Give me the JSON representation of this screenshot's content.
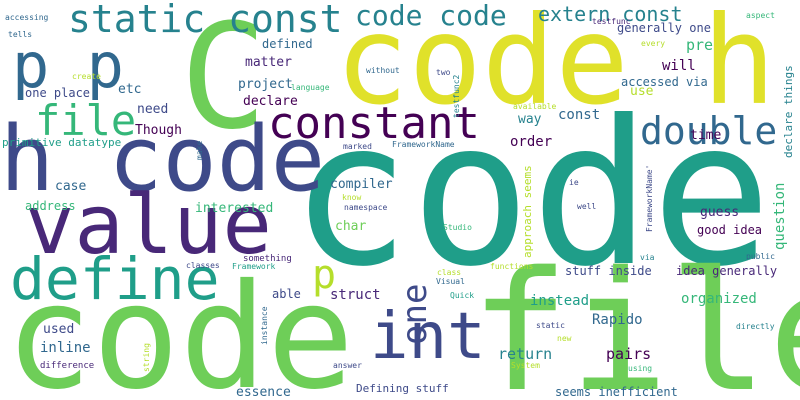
{
  "words": [
    {
      "text": "code",
      "color": "teal"
    },
    {
      "text": "file",
      "color": "green"
    },
    {
      "text": "code",
      "color": "green"
    },
    {
      "text": "code h",
      "color": "yellow"
    },
    {
      "text": "C",
      "color": "green"
    },
    {
      "text": "h code",
      "color": "navy"
    },
    {
      "text": "value",
      "color": "purple"
    },
    {
      "text": "define",
      "color": "teal"
    },
    {
      "text": "int",
      "color": "navy"
    },
    {
      "text": "constant",
      "color": "dpurple"
    },
    {
      "text": "p p",
      "color": "blue"
    },
    {
      "text": "static const",
      "color": "cyan"
    },
    {
      "text": "code code",
      "color": "cyan"
    },
    {
      "text": "double",
      "color": "blue"
    },
    {
      "text": "file",
      "color": "mint"
    },
    {
      "text": "extern const",
      "color": "cyan"
    },
    {
      "text": "one",
      "color": "navy"
    },
    {
      "text": "p",
      "color": "lime"
    },
    {
      "text": "Rapido",
      "color": "blue"
    },
    {
      "text": "return",
      "color": "cyan"
    },
    {
      "text": "pairs",
      "color": "dpurple"
    },
    {
      "text": "instead",
      "color": "teal"
    },
    {
      "text": "organized",
      "color": "mint"
    },
    {
      "text": "defined",
      "color": "blue"
    },
    {
      "text": "matter",
      "color": "purple"
    },
    {
      "text": "project",
      "color": "blue"
    },
    {
      "text": "declare",
      "color": "dpurple"
    },
    {
      "text": "Though",
      "color": "dpurple"
    },
    {
      "text": "need",
      "color": "navy"
    },
    {
      "text": "etc",
      "color": "blue"
    },
    {
      "text": "one place",
      "color": "navy"
    },
    {
      "text": "case",
      "color": "blue"
    },
    {
      "text": "compiler",
      "color": "blue"
    },
    {
      "text": "address",
      "color": "mint"
    },
    {
      "text": "interested",
      "color": "mint"
    },
    {
      "text": "char",
      "color": "green"
    },
    {
      "text": "able",
      "color": "navy"
    },
    {
      "text": "struct",
      "color": "purple"
    },
    {
      "text": "used",
      "color": "navy"
    },
    {
      "text": "inline",
      "color": "blue"
    },
    {
      "text": "guess",
      "color": "purple"
    },
    {
      "text": "time",
      "color": "dpurple"
    },
    {
      "text": "way",
      "color": "cyan"
    },
    {
      "text": "const",
      "color": "blue"
    },
    {
      "text": "order",
      "color": "dpurple"
    },
    {
      "text": "will",
      "color": "dpurple"
    },
    {
      "text": "pre",
      "color": "mint"
    },
    {
      "text": "use",
      "color": "lime"
    },
    {
      "text": "accessed via",
      "color": "blue"
    },
    {
      "text": "generally one",
      "color": "navy"
    },
    {
      "text": "good idea",
      "color": "dpurple"
    },
    {
      "text": "idea generally",
      "color": "purple"
    },
    {
      "text": "stuff inside",
      "color": "navy"
    },
    {
      "text": "essence",
      "color": "blue"
    },
    {
      "text": "seems inefficient",
      "color": "blue"
    },
    {
      "text": "Defining stuff",
      "color": "navy"
    },
    {
      "text": "primitive datatype",
      "color": "teal"
    },
    {
      "text": "question",
      "color": "mint"
    },
    {
      "text": "approach seems",
      "color": "lime"
    },
    {
      "text": "declare things",
      "color": "cyan"
    },
    {
      "text": "testfunc",
      "color": "purple"
    },
    {
      "text": "testfunc2",
      "color": "cyan"
    },
    {
      "text": "accessing",
      "color": "blue"
    },
    {
      "text": "aspect",
      "color": "mint"
    },
    {
      "text": "tells",
      "color": "blue"
    },
    {
      "text": "create",
      "color": "lime"
    },
    {
      "text": "language",
      "color": "mint"
    },
    {
      "text": "without",
      "color": "blue"
    },
    {
      "text": "two",
      "color": "navy"
    },
    {
      "text": "every",
      "color": "lime"
    },
    {
      "text": "available",
      "color": "lime"
    },
    {
      "text": "marked",
      "color": "navy"
    },
    {
      "text": "FrameworkName",
      "color": "blue"
    },
    {
      "text": "FrameworkName'",
      "color": "navy"
    },
    {
      "text": "know",
      "color": "lime"
    },
    {
      "text": "namespace",
      "color": "navy"
    },
    {
      "text": "ie",
      "color": "navy"
    },
    {
      "text": "well",
      "color": "navy"
    },
    {
      "text": "Studio",
      "color": "mint"
    },
    {
      "text": "make",
      "color": "blue"
    },
    {
      "text": "difference",
      "color": "purple"
    },
    {
      "text": "something",
      "color": "purple"
    },
    {
      "text": "Framework",
      "color": "teal"
    },
    {
      "text": "classes",
      "color": "navy"
    },
    {
      "text": "class",
      "color": "lime"
    },
    {
      "text": "Visual",
      "color": "blue"
    },
    {
      "text": "functions",
      "color": "lime"
    },
    {
      "text": "via",
      "color": "cyan"
    },
    {
      "text": "public",
      "color": "blue"
    },
    {
      "text": "directly",
      "color": "cyan"
    },
    {
      "text": "Quick",
      "color": "teal"
    },
    {
      "text": "static",
      "color": "navy"
    },
    {
      "text": "new",
      "color": "lime"
    },
    {
      "text": "System",
      "color": "lime"
    },
    {
      "text": "using",
      "color": "mint"
    },
    {
      "text": "answer",
      "color": "navy"
    },
    {
      "text": "string",
      "color": "lime"
    },
    {
      "text": "instance",
      "color": "blue"
    }
  ]
}
